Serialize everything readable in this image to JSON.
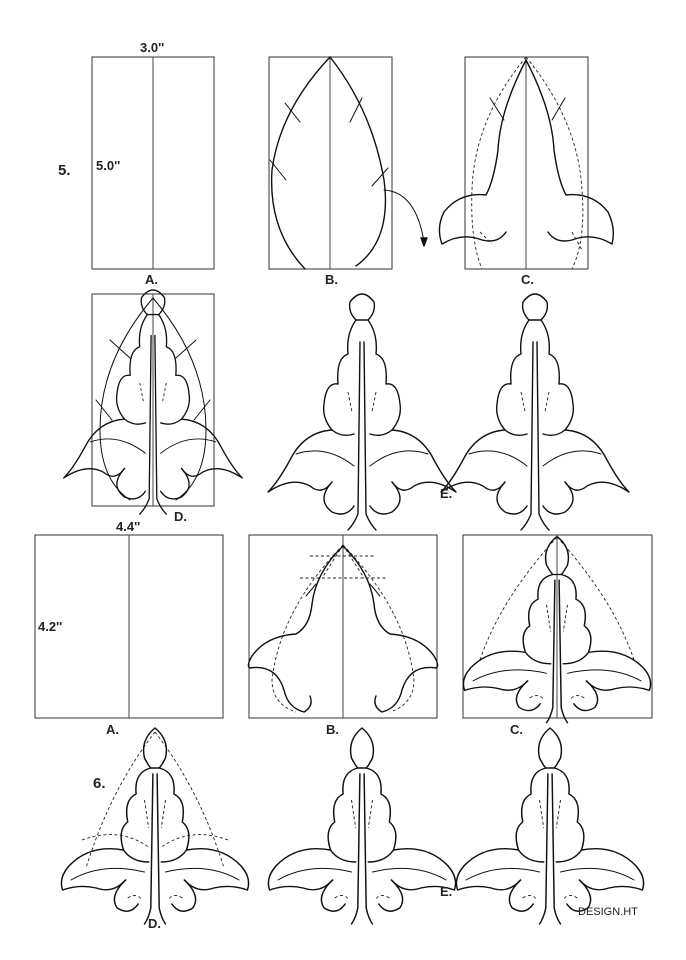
{
  "section5": {
    "step_number": "5.",
    "width_dim": "3.0''",
    "height_dim": "5.0''",
    "labels": [
      "A.",
      "B.",
      "C.",
      "D.",
      "E."
    ]
  },
  "section6": {
    "step_number": "6.",
    "width_dim": "4.4''",
    "height_dim": "4.2''",
    "labels": [
      "A.",
      "B.",
      "C.",
      "D.",
      "E."
    ]
  },
  "watermark": "DESIGN.HT",
  "colors": {
    "line": "#111111",
    "background": "#ffffff"
  }
}
